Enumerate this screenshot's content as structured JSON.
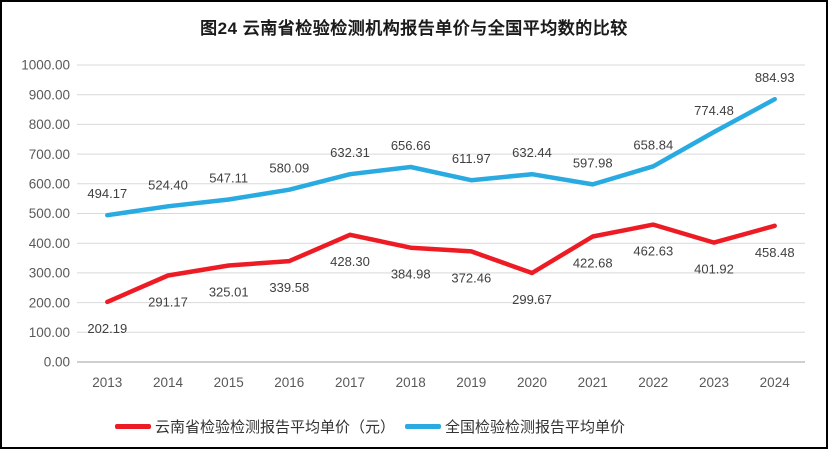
{
  "title": "图24 云南省检验检测机构报告单价与全国平均数的比较",
  "chart_data": {
    "type": "line",
    "categories": [
      "2013",
      "2014",
      "2015",
      "2016",
      "2017",
      "2018",
      "2019",
      "2020",
      "2021",
      "2022",
      "2023",
      "2024"
    ],
    "series": [
      {
        "name": "云南省检验检测报告平均单价（元）",
        "color": "#ED1C24",
        "label_offset": "below",
        "values": [
          202.19,
          291.17,
          325.01,
          339.58,
          428.3,
          384.98,
          372.46,
          299.67,
          422.68,
          462.63,
          401.92,
          458.48
        ]
      },
      {
        "name": "全国检验检测报告平均单价",
        "color": "#29ABE2",
        "label_offset": "above",
        "values": [
          494.17,
          524.4,
          547.11,
          580.09,
          632.31,
          656.66,
          611.97,
          632.44,
          597.98,
          658.84,
          774.48,
          884.93
        ]
      }
    ],
    "ylim": [
      0,
      1000
    ],
    "ytick_step": 100,
    "ytick_format_decimals": 2,
    "grid": true,
    "gridline_color": "#D9D9D9",
    "axisline_color": "#BFBFBF",
    "legend_position": "bottom"
  }
}
